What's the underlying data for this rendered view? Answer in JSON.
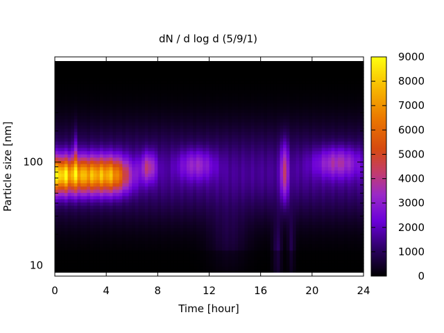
{
  "chart_data": {
    "type": "heatmap",
    "title": "dN / d log d (5/9/1)",
    "xlabel": "Time [hour]",
    "ylabel": "Particle size [nm]",
    "xlim": [
      0,
      24
    ],
    "ylim_nm": [
      8.5,
      950
    ],
    "y_scale": "log",
    "x_ticks": [
      "0",
      "4",
      "8",
      "12",
      "16",
      "20",
      "24"
    ],
    "y_ticks": [
      {
        "value": 10,
        "label": "10"
      },
      {
        "value": 100,
        "label": "100"
      }
    ],
    "colorbar": {
      "range": [
        0,
        9000
      ],
      "ticks": [
        "0",
        "1000",
        "2000",
        "3000",
        "4000",
        "5000",
        "6000",
        "7000",
        "8000",
        "9000"
      ],
      "palette": "black-purple-red-orange-yellow"
    },
    "features": [
      {
        "time_range": [
          0,
          6
        ],
        "size_peak_nm": 75,
        "max_value": 8200
      },
      {
        "time_range": [
          6.5,
          8
        ],
        "size_peak_nm": 90,
        "max_value": 4600
      },
      {
        "time_range": [
          9.5,
          13
        ],
        "size_peak_nm": 95,
        "max_value": 3900
      },
      {
        "time_range": [
          17.5,
          18.2
        ],
        "size_peak_nm": 80,
        "max_value": 5200
      },
      {
        "time_range": [
          20,
          24
        ],
        "size_peak_nm": 100,
        "max_value": 4300
      }
    ]
  }
}
